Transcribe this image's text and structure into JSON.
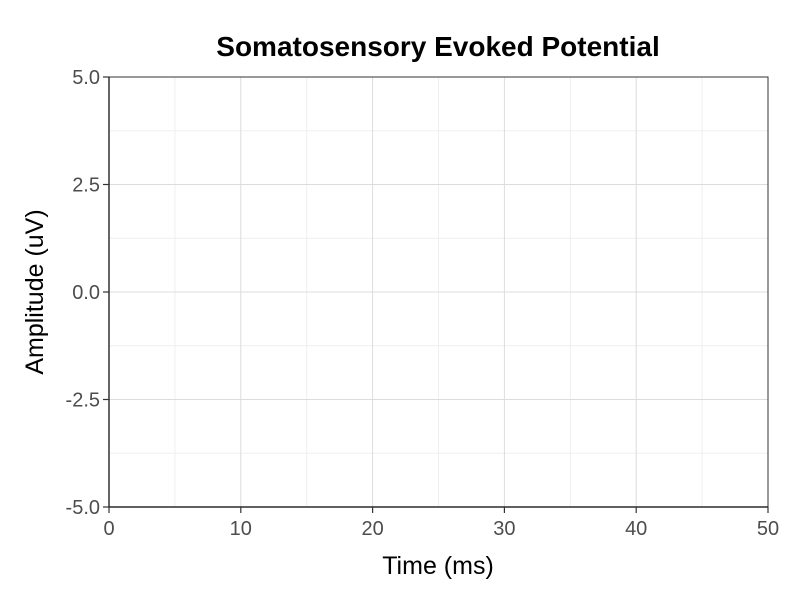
{
  "chart_data": {
    "type": "line",
    "title": "Somatosensory Evoked Potential",
    "xlabel": "Time (ms)",
    "ylabel": "Amplitude (uV)",
    "xlim": [
      0,
      50
    ],
    "ylim": [
      -5.0,
      5.0
    ],
    "x_ticks": [
      0,
      10,
      20,
      30,
      40,
      50
    ],
    "x_tick_labels": [
      "0",
      "10",
      "20",
      "30",
      "40",
      "50"
    ],
    "y_ticks": [
      -5.0,
      -2.5,
      0.0,
      2.5,
      5.0
    ],
    "y_tick_labels": [
      "-5.0",
      "-2.5",
      "0.0",
      "2.5",
      "5.0"
    ],
    "x_minor_ticks": [
      5,
      15,
      25,
      35,
      45
    ],
    "y_minor_ticks": [
      -3.75,
      -1.25,
      1.25,
      3.75
    ],
    "grid": true,
    "series": []
  }
}
